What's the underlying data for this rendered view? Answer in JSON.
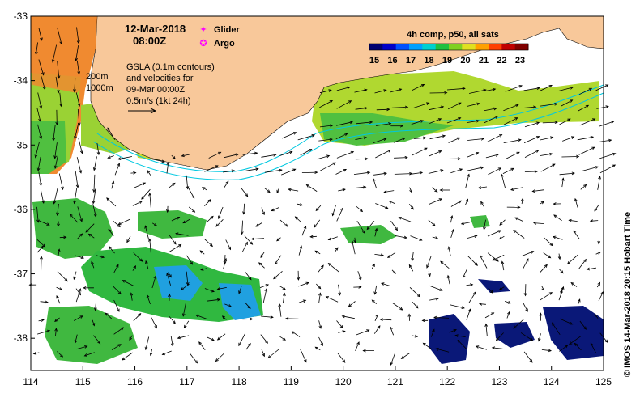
{
  "map": {
    "date_line": "12-Mar-2018",
    "time_line": "08:00Z",
    "gsla_notes": [
      "GSLA (0.1m contours)",
      "and velocities for",
      "09-Mar 00:00Z",
      "0.5m/s (1kt 24h)"
    ],
    "isobath_labels": [
      "200m",
      "1000m"
    ],
    "legend": {
      "items": [
        {
          "label": "Glider",
          "color": "#ff00ff",
          "symbol": "✦"
        },
        {
          "label": "Argo",
          "color": "#ff00ff",
          "symbol": "✪"
        }
      ]
    },
    "colorbar": {
      "title": "4h comp, p50, all sats",
      "ticks": [
        "15",
        "16",
        "17",
        "18",
        "19",
        "20",
        "21",
        "22",
        "23"
      ],
      "colors": [
        "#000070",
        "#0000c8",
        "#0050ff",
        "#00a0ff",
        "#00d0d0",
        "#20c040",
        "#80d020",
        "#e0e020",
        "#ffa000",
        "#ff4000",
        "#c00000",
        "#800000"
      ]
    },
    "x_axis": {
      "min": 114,
      "max": 125,
      "ticks": [
        "114",
        "115",
        "116",
        "117",
        "118",
        "119",
        "120",
        "121",
        "122",
        "123",
        "124",
        "125"
      ]
    },
    "y_axis": {
      "min": -38.5,
      "max": -33,
      "ticks": [
        "-33",
        "-34",
        "-35",
        "-36",
        "-37",
        "-38"
      ]
    },
    "credit": "©  IMOS 14-Mar-2018 20:15 Hobart Time",
    "colors": {
      "land": "#f8c89a",
      "arrow": "#000000",
      "isobath": "#00c8e0"
    }
  }
}
